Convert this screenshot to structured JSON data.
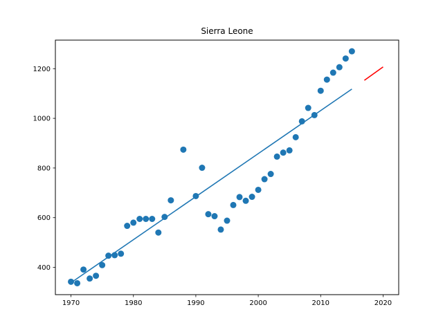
{
  "chart_data": {
    "type": "scatter",
    "title": "Sierra Leone",
    "xlabel": "",
    "ylabel": "",
    "xlim": [
      1967.5,
      2022.5
    ],
    "ylim": [
      290,
      1315
    ],
    "x_ticks": [
      1970,
      1980,
      1990,
      2000,
      2010,
      2020
    ],
    "y_ticks": [
      400,
      600,
      800,
      1000,
      1200
    ],
    "grid": false,
    "legend": "none",
    "colors": {
      "points": "#1f77b4",
      "fit": "#1f77b4",
      "forecast": "#ff0000"
    },
    "series": [
      {
        "type": "scatter",
        "points": [
          [
            1970,
            342
          ],
          [
            1971,
            336
          ],
          [
            1972,
            391
          ],
          [
            1973,
            355
          ],
          [
            1974,
            366
          ],
          [
            1975,
            409
          ],
          [
            1976,
            447
          ],
          [
            1977,
            449
          ],
          [
            1978,
            455
          ],
          [
            1979,
            567
          ],
          [
            1980,
            580
          ],
          [
            1981,
            595
          ],
          [
            1982,
            595
          ],
          [
            1983,
            595
          ],
          [
            1984,
            540
          ],
          [
            1985,
            603
          ],
          [
            1986,
            670
          ],
          [
            1988,
            874
          ],
          [
            1990,
            687
          ],
          [
            1991,
            801
          ],
          [
            1992,
            614
          ],
          [
            1993,
            606
          ],
          [
            1994,
            552
          ],
          [
            1995,
            588
          ],
          [
            1996,
            651
          ],
          [
            1997,
            683
          ],
          [
            1998,
            668
          ],
          [
            1999,
            684
          ],
          [
            2000,
            712
          ],
          [
            2001,
            755
          ],
          [
            2002,
            776
          ],
          [
            2003,
            846
          ],
          [
            2004,
            862
          ],
          [
            2005,
            871
          ],
          [
            2006,
            924
          ],
          [
            2007,
            988
          ],
          [
            2008,
            1042
          ],
          [
            2009,
            1013
          ],
          [
            2010,
            1111
          ],
          [
            2011,
            1156
          ],
          [
            2012,
            1184
          ],
          [
            2013,
            1206
          ],
          [
            2014,
            1241
          ],
          [
            2015,
            1270
          ]
        ]
      },
      {
        "type": "line",
        "points": [
          [
            1970,
            338
          ],
          [
            2015,
            1118
          ]
        ]
      },
      {
        "type": "line",
        "points": [
          [
            2017,
            1153
          ],
          [
            2020,
            1207
          ]
        ]
      }
    ]
  }
}
